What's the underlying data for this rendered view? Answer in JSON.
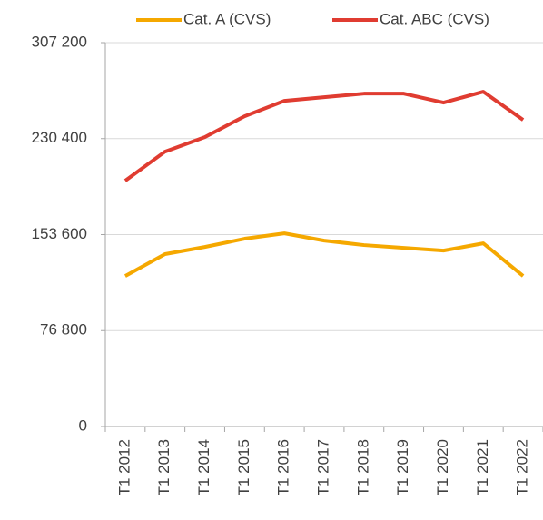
{
  "chart_data": {
    "type": "line",
    "categories": [
      "T1 2012",
      "T1 2013",
      "T1 2014",
      "T1 2015",
      "T1 2016",
      "T1 2017",
      "T1 2018",
      "T1 2019",
      "T1 2020",
      "T1 2021",
      "T1 2022"
    ],
    "series": [
      {
        "name": "Cat. A (CVS)",
        "color": "#f5a800",
        "values": [
          120500,
          138000,
          143700,
          150300,
          154600,
          148800,
          145200,
          143000,
          140800,
          146600,
          120500
        ]
      },
      {
        "name": "Cat. ABC (CVS)",
        "color": "#e03c31",
        "values": [
          196700,
          220000,
          231600,
          248300,
          260600,
          263500,
          266400,
          266400,
          259200,
          267900,
          245400
        ]
      }
    ],
    "ylim": [
      0,
      307200
    ],
    "yticks": [
      0,
      {
        "value": 76800,
        "label": "76 800"
      },
      {
        "value": 153600,
        "label": "153 600"
      },
      {
        "value": 230400,
        "label": "230 400"
      },
      {
        "value": 307200,
        "label": "307 200"
      }
    ],
    "grid": true,
    "legend": "top"
  }
}
